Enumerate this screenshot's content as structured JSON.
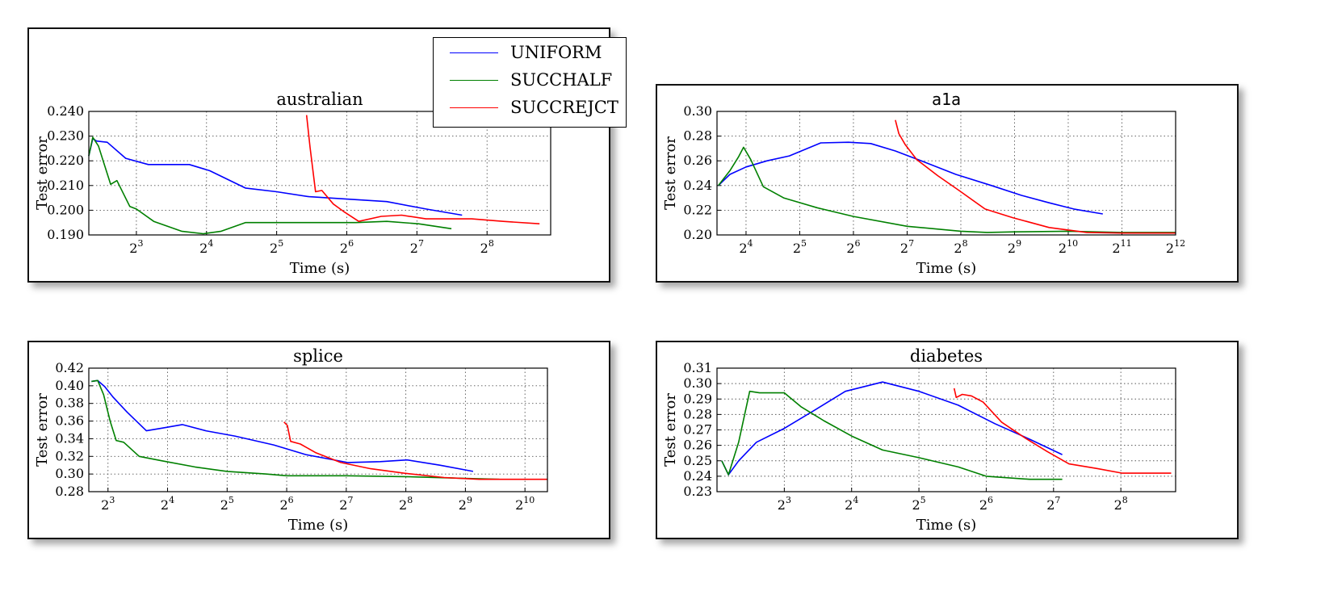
{
  "legend": {
    "items": [
      {
        "label": "UNIFORM",
        "color": "#0000ff"
      },
      {
        "label": "SUCCHALF",
        "color": "#008000"
      },
      {
        "label": "SUCCREJCT",
        "color": "#ff0000"
      }
    ]
  },
  "chart_data": [
    {
      "type": "line",
      "title": "australian",
      "xlabel": "Time (s)",
      "ylabel": "Test error",
      "x_scale": "log2",
      "xlim": [
        5.0,
        480
      ],
      "ylim": [
        0.19,
        0.24
      ],
      "xticks": [
        {
          "value": 8,
          "base": "2",
          "exp": "3"
        },
        {
          "value": 16,
          "base": "2",
          "exp": "4"
        },
        {
          "value": 32,
          "base": "2",
          "exp": "5"
        },
        {
          "value": 64,
          "base": "2",
          "exp": "6"
        },
        {
          "value": 128,
          "base": "2",
          "exp": "7"
        },
        {
          "value": 256,
          "base": "2",
          "exp": "8"
        }
      ],
      "yticks": [
        "0.190",
        "0.200",
        "0.210",
        "0.220",
        "0.230",
        "0.240"
      ],
      "grid": true,
      "series": [
        {
          "name": "UNIFORM",
          "color": "#0000ff",
          "x": [
            5.0,
            5.2,
            5.4,
            6.0,
            7.2,
            9.0,
            11.0,
            13.5,
            16.5,
            23.5,
            32,
            44,
            64,
            95,
            140,
            200
          ],
          "y": [
            0.222,
            0.229,
            0.228,
            0.2275,
            0.221,
            0.2185,
            0.2185,
            0.2185,
            0.216,
            0.209,
            0.2075,
            0.2055,
            0.2045,
            0.2035,
            0.2005,
            0.198
          ]
        },
        {
          "name": "SUCCHALF",
          "color": "#008000",
          "x": [
            5.0,
            5.2,
            5.5,
            6.2,
            6.6,
            7.5,
            8.0,
            9.5,
            12.5,
            15.5,
            18.5,
            23.5,
            32,
            50,
            70,
            95,
            130,
            180
          ],
          "y": [
            0.222,
            0.2295,
            0.226,
            0.2105,
            0.212,
            0.2015,
            0.2005,
            0.1955,
            0.1915,
            0.1905,
            0.1915,
            0.195,
            0.195,
            0.195,
            0.195,
            0.1955,
            0.1945,
            0.1925
          ]
        },
        {
          "name": "SUCCREJCT",
          "color": "#ff0000",
          "x": [
            43,
            44.5,
            47,
            50,
            56,
            62,
            72,
            90,
            110,
            140,
            170,
            220,
            300,
            430
          ],
          "y": [
            0.2385,
            0.2255,
            0.2075,
            0.208,
            0.2025,
            0.1995,
            0.1955,
            0.1975,
            0.198,
            0.1965,
            0.1965,
            0.1965,
            0.1955,
            0.1945
          ]
        }
      ]
    },
    {
      "type": "line",
      "title": "a1a",
      "xlabel": "Time (s)",
      "ylabel": "Test error",
      "x_scale": "log2",
      "xlim": [
        11.0,
        4096
      ],
      "ylim": [
        0.2,
        0.3
      ],
      "xticks": [
        {
          "value": 16,
          "base": "2",
          "exp": "4"
        },
        {
          "value": 32,
          "base": "2",
          "exp": "5"
        },
        {
          "value": 64,
          "base": "2",
          "exp": "6"
        },
        {
          "value": 128,
          "base": "2",
          "exp": "7"
        },
        {
          "value": 256,
          "base": "2",
          "exp": "8"
        },
        {
          "value": 512,
          "base": "2",
          "exp": "9"
        },
        {
          "value": 1024,
          "base": "2",
          "exp": "10"
        },
        {
          "value": 2048,
          "base": "2",
          "exp": "11"
        },
        {
          "value": 4096,
          "base": "2",
          "exp": "12"
        }
      ],
      "yticks": [
        "0.20",
        "0.22",
        "0.24",
        "0.26",
        "0.28",
        "0.30"
      ],
      "grid": true,
      "series": [
        {
          "name": "UNIFORM",
          "color": "#0000ff",
          "x": [
            11.2,
            13,
            16,
            21,
            28,
            42,
            60,
            80,
            110,
            160,
            240,
            380,
            560,
            800,
            1100,
            1600
          ],
          "y": [
            0.24,
            0.249,
            0.255,
            0.26,
            0.264,
            0.2745,
            0.275,
            0.274,
            0.268,
            0.259,
            0.249,
            0.24,
            0.232,
            0.226,
            0.221,
            0.217
          ]
        },
        {
          "name": "SUCCHALF",
          "color": "#008000",
          "x": [
            11.2,
            13,
            14.5,
            15.5,
            17,
            20,
            26,
            40,
            64,
            128,
            256,
            360,
            512,
            1024,
            2048,
            4096
          ],
          "y": [
            0.24,
            0.252,
            0.263,
            0.271,
            0.261,
            0.239,
            0.23,
            0.222,
            0.215,
            0.207,
            0.203,
            0.202,
            0.2025,
            0.203,
            0.202,
            0.202
          ]
        },
        {
          "name": "SUCCREJCT",
          "color": "#ff0000",
          "x": [
            110,
            115,
            125,
            145,
            190,
            250,
            350,
            500,
            800,
            1300,
            2048,
            4096
          ],
          "y": [
            0.293,
            0.282,
            0.273,
            0.261,
            0.248,
            0.236,
            0.221,
            0.214,
            0.206,
            0.202,
            0.2015,
            0.2015
          ]
        }
      ]
    },
    {
      "type": "line",
      "title": "splice",
      "xlabel": "Time (s)",
      "ylabel": "Test error",
      "x_scale": "log2",
      "xlim": [
        6.4,
        1330
      ],
      "ylim": [
        0.28,
        0.42
      ],
      "xticks": [
        {
          "value": 8,
          "base": "2",
          "exp": "3"
        },
        {
          "value": 16,
          "base": "2",
          "exp": "4"
        },
        {
          "value": 32,
          "base": "2",
          "exp": "5"
        },
        {
          "value": 64,
          "base": "2",
          "exp": "6"
        },
        {
          "value": 128,
          "base": "2",
          "exp": "7"
        },
        {
          "value": 256,
          "base": "2",
          "exp": "8"
        },
        {
          "value": 512,
          "base": "2",
          "exp": "9"
        },
        {
          "value": 1024,
          "base": "2",
          "exp": "10"
        }
      ],
      "yticks": [
        "0.28",
        "0.30",
        "0.32",
        "0.34",
        "0.36",
        "0.38",
        "0.40",
        "0.42"
      ],
      "grid": true,
      "series": [
        {
          "name": "UNIFORM",
          "color": "#0000ff",
          "x": [
            6.6,
            7.1,
            7.7,
            8.5,
            10,
            12.5,
            15,
            19,
            25,
            35,
            55,
            80,
            130,
            190,
            260,
            380,
            560
          ],
          "y": [
            0.405,
            0.406,
            0.399,
            0.387,
            0.37,
            0.349,
            0.352,
            0.356,
            0.349,
            0.343,
            0.333,
            0.322,
            0.313,
            0.314,
            0.316,
            0.31,
            0.303
          ]
        },
        {
          "name": "SUCCHALF",
          "color": "#008000",
          "x": [
            6.6,
            7.1,
            7.6,
            8.2,
            8.8,
            9.6,
            11.5,
            15,
            22,
            32,
            50,
            64,
            128,
            256,
            512,
            760
          ],
          "y": [
            0.405,
            0.406,
            0.39,
            0.36,
            0.338,
            0.336,
            0.32,
            0.315,
            0.308,
            0.303,
            0.3,
            0.298,
            0.298,
            0.297,
            0.295,
            0.294
          ]
        },
        {
          "name": "SUCCREJCT",
          "color": "#ff0000",
          "x": [
            62,
            64.5,
            67,
            75,
            90,
            120,
            170,
            250,
            400,
            600,
            900,
            1330
          ],
          "y": [
            0.359,
            0.355,
            0.337,
            0.334,
            0.324,
            0.313,
            0.306,
            0.301,
            0.296,
            0.294,
            0.294,
            0.294
          ]
        }
      ]
    },
    {
      "type": "line",
      "title": "diabetes",
      "xlabel": "Time (s)",
      "ylabel": "Test error",
      "x_scale": "log2",
      "xlim": [
        4.0,
        450
      ],
      "ylim": [
        0.23,
        0.31
      ],
      "xticks": [
        {
          "value": 8,
          "base": "2",
          "exp": "3"
        },
        {
          "value": 16,
          "base": "2",
          "exp": "4"
        },
        {
          "value": 32,
          "base": "2",
          "exp": "5"
        },
        {
          "value": 64,
          "base": "2",
          "exp": "6"
        },
        {
          "value": 128,
          "base": "2",
          "exp": "7"
        },
        {
          "value": 256,
          "base": "2",
          "exp": "8"
        }
      ],
      "yticks": [
        "0.23",
        "0.24",
        "0.25",
        "0.26",
        "0.27",
        "0.28",
        "0.29",
        "0.30",
        "0.31"
      ],
      "grid": true,
      "series": [
        {
          "name": "UNIFORM",
          "color": "#0000ff",
          "x": [
            4.2,
            4.5,
            5.0,
            6.0,
            8.0,
            11,
            15,
            22,
            32,
            48,
            70,
            100,
            140
          ],
          "y": [
            0.25,
            0.241,
            0.25,
            0.262,
            0.271,
            0.283,
            0.295,
            0.301,
            0.295,
            0.286,
            0.274,
            0.264,
            0.254
          ]
        },
        {
          "name": "SUCCHALF",
          "color": "#008000",
          "x": [
            4.2,
            4.5,
            5.0,
            5.6,
            6.2,
            7.0,
            8.0,
            9.5,
            12,
            16,
            22,
            32,
            48,
            64,
            100,
            140
          ],
          "y": [
            0.25,
            0.241,
            0.262,
            0.295,
            0.294,
            0.294,
            0.294,
            0.285,
            0.276,
            0.266,
            0.257,
            0.252,
            0.246,
            0.24,
            0.238,
            0.238
          ]
        },
        {
          "name": "SUCCREJCT",
          "color": "#ff0000",
          "x": [
            46,
            47,
            50,
            55,
            62,
            75,
            95,
            120,
            150,
            200,
            260,
            330,
            430
          ],
          "y": [
            0.297,
            0.291,
            0.293,
            0.292,
            0.288,
            0.275,
            0.265,
            0.256,
            0.248,
            0.245,
            0.242,
            0.242,
            0.242
          ]
        }
      ]
    }
  ]
}
